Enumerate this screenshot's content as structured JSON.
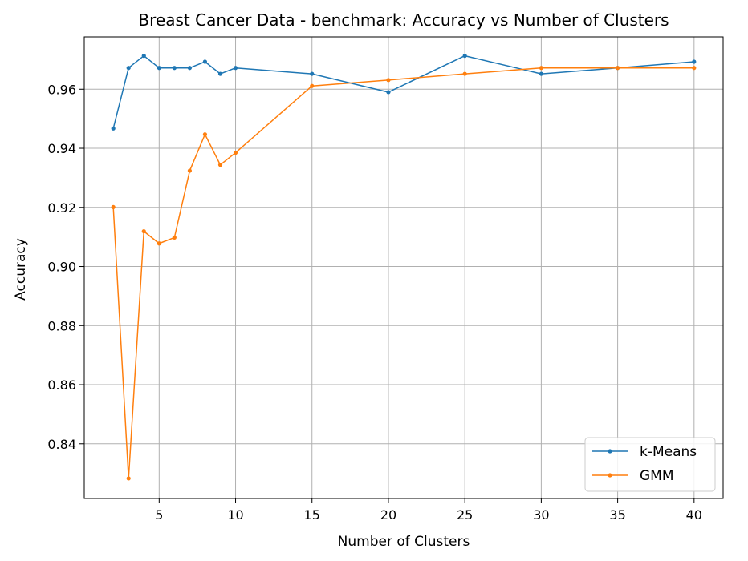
{
  "chart_data": {
    "type": "line",
    "title": "Breast Cancer Data - benchmark: Accuracy vs Number of Clusters",
    "xlabel": "Number of Clusters",
    "ylabel": "Accuracy",
    "xlim": [
      0.1,
      41.9
    ],
    "ylim": [
      0.8215,
      0.9777
    ],
    "xticks": [
      5,
      10,
      15,
      20,
      25,
      30,
      35,
      40
    ],
    "yticks": [
      0.84,
      0.86,
      0.88,
      0.9,
      0.92,
      0.94,
      0.96
    ],
    "ytick_labels": [
      "0.84",
      "0.86",
      "0.88",
      "0.90",
      "0.92",
      "0.94",
      "0.96"
    ],
    "grid": true,
    "legend_position": "lower-right",
    "x": [
      2,
      3,
      4,
      5,
      6,
      7,
      8,
      9,
      10,
      15,
      20,
      25,
      30,
      35,
      40
    ],
    "series": [
      {
        "name": "k-Means",
        "color": "#1f77b4",
        "values": [
          0.9467,
          0.9672,
          0.9713,
          0.9672,
          0.9672,
          0.9672,
          0.9693,
          0.9652,
          0.9672,
          0.9652,
          0.959,
          0.9713,
          0.9652,
          0.9672,
          0.9693
        ]
      },
      {
        "name": "GMM",
        "color": "#ff7f0e",
        "values": [
          0.9201,
          0.8283,
          0.9119,
          0.9078,
          0.9098,
          0.9324,
          0.9447,
          0.9344,
          0.9385,
          0.9611,
          0.9631,
          0.9652,
          0.9672,
          0.9672,
          0.9672
        ]
      }
    ]
  }
}
